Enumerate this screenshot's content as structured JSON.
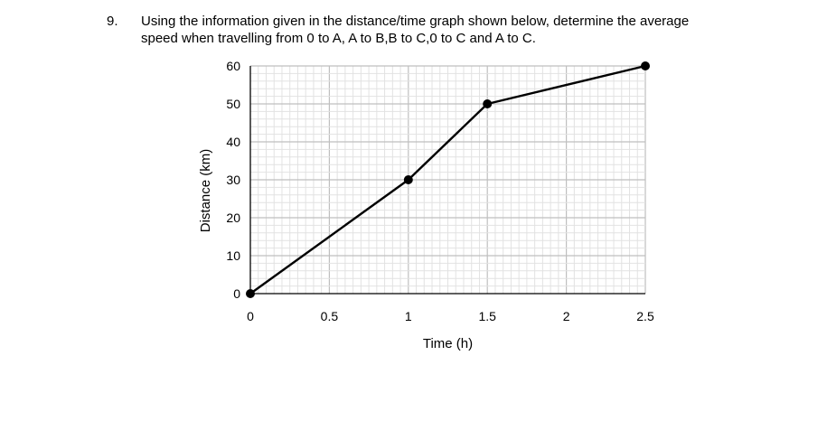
{
  "question": {
    "number": "9.",
    "line1": "Using the information given in the distance/time graph shown below, determine the average",
    "line2": "speed when travelling from 0 to A, A to B,B to C,0 to C and A to C."
  },
  "chart_data": {
    "type": "line",
    "xlabel": "Time (h)",
    "ylabel": "Distance (km)",
    "xlim": [
      0,
      2.5
    ],
    "ylim": [
      0,
      60
    ],
    "x_ticks": [
      "0",
      "0.5",
      "1",
      "1.5",
      "2",
      "2.5"
    ],
    "y_ticks": [
      "0",
      "10",
      "20",
      "30",
      "40",
      "50",
      "60"
    ],
    "grid": true,
    "series": [
      {
        "x": [
          0,
          1,
          1.5,
          2.5
        ],
        "y": [
          0,
          30,
          50,
          60
        ]
      }
    ],
    "colors": {
      "line": "#000000",
      "major_grid": "#bfbfbf",
      "minor_grid": "#e2e2e2"
    }
  }
}
